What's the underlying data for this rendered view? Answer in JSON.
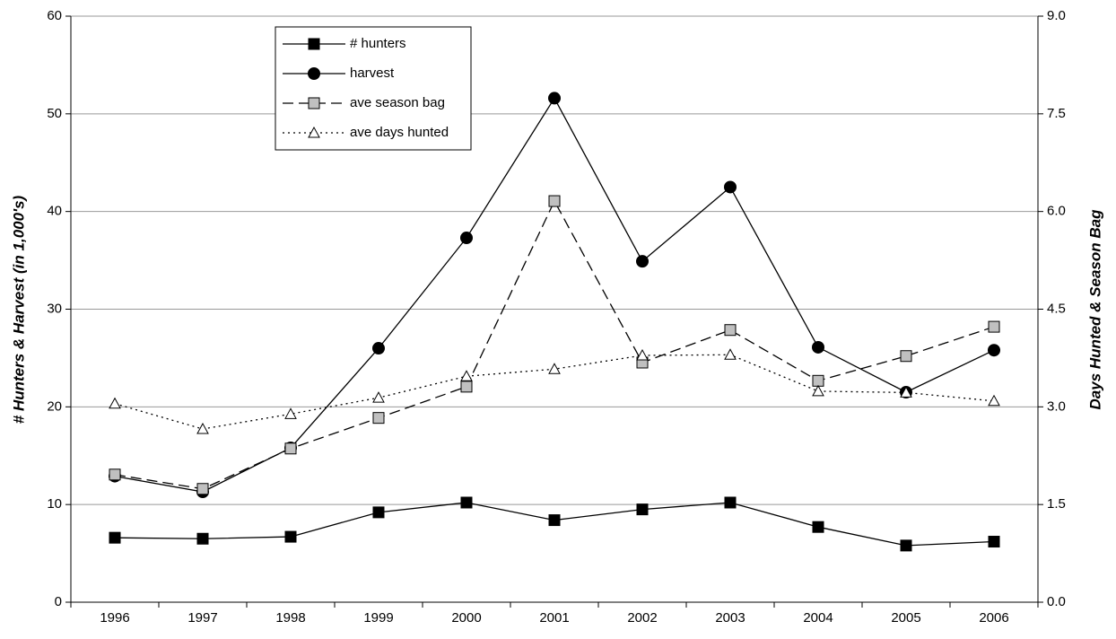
{
  "chart_data": {
    "type": "line",
    "y_label": "# Hunters & Harvest (in 1,000's)",
    "y2_label": "Days Hunted & Season Bag",
    "categories": [
      "1996",
      "1997",
      "1998",
      "1999",
      "2000",
      "2001",
      "2002",
      "2003",
      "2004",
      "2005",
      "2006"
    ],
    "ylim": [
      0,
      60
    ],
    "yticks": [
      0,
      10,
      20,
      30,
      40,
      50,
      60
    ],
    "y2lim": [
      0,
      9
    ],
    "y2ticks": [
      {
        "value": 0,
        "label": "0.0"
      },
      1.5,
      {
        "value": 3,
        "label": "3.0"
      },
      4.5,
      {
        "value": 6,
        "label": "6.0"
      },
      7.5,
      {
        "value": 9,
        "label": "9.0"
      }
    ],
    "grid": true,
    "series": [
      {
        "name": "# hunters",
        "color": "#000000",
        "marker": "square",
        "marker_fill": "#000000",
        "line_style": "solid",
        "values": [
          6.6,
          6.5,
          6.7,
          9.2,
          10.2,
          8.4,
          9.5,
          10.2,
          7.7,
          5.8,
          6.2
        ]
      },
      {
        "name": "harvest",
        "color": "#000000",
        "marker": "circle",
        "marker_fill": "#000000",
        "line_style": "solid",
        "values": [
          12.9,
          11.3,
          15.8,
          26.0,
          37.3,
          51.6,
          34.9,
          42.5,
          26.1,
          21.5,
          25.8
        ]
      },
      {
        "name": "ave season bag",
        "color": "#000000",
        "marker": "square",
        "marker_fill": "#c0c0c0",
        "line_style": "dashed",
        "axis": "y2",
        "values": [
          1.96,
          1.74,
          2.36,
          2.83,
          3.31,
          6.16,
          3.68,
          4.18,
          3.4,
          3.78,
          4.23
        ]
      },
      {
        "name": "ave days hunted",
        "color": "#000000",
        "marker": "triangle",
        "marker_fill": "#ffffff",
        "line_style": "dotted",
        "axis": "y2",
        "values": [
          3.05,
          2.66,
          2.89,
          3.14,
          3.47,
          3.58,
          3.79,
          3.8,
          3.24,
          3.22,
          3.09
        ]
      }
    ]
  }
}
